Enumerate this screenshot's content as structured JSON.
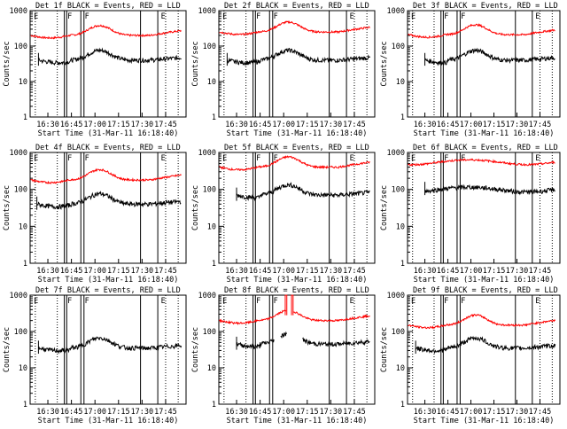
{
  "colors": {
    "events": "#000000",
    "lld": "#ff0000",
    "axis": "#000000"
  },
  "shared": {
    "xlabel": "Start Time (31-Mar-11 16:18:40)",
    "ylabel": "Counts/sec",
    "yscale": "log",
    "ylim": [
      1,
      1000
    ],
    "yticks": [
      "1",
      "10",
      "100",
      "1000"
    ],
    "xticks": [
      "16:30",
      "16:45",
      "17:00",
      "17:15",
      "17:30",
      "17:45"
    ],
    "xtick_minutes": [
      30,
      45,
      60,
      75,
      90,
      105
    ],
    "xlim_minutes": [
      18.7,
      118
    ],
    "marker_labels": [
      "E",
      "F",
      "F",
      "E"
    ],
    "solid_markers_minutes": [
      40.5,
      42,
      51,
      53,
      89,
      100
    ],
    "dotted_markers_minutes": [
      22,
      36,
      105,
      113
    ]
  },
  "chart_data": [
    {
      "type": "line",
      "title": "Det 1f BLACK = Events, RED = LLD",
      "events_base": 40,
      "lld_base": 200,
      "events_start": 24,
      "lld_start": 19
    },
    {
      "type": "line",
      "title": "Det 2f BLACK = Events, RED = LLD",
      "events_base": 40,
      "lld_base": 250,
      "events_start": 24,
      "lld_start": 19
    },
    {
      "type": "line",
      "title": "Det 3f BLACK = Events, RED = LLD",
      "events_base": 40,
      "lld_base": 210,
      "events_start": 30,
      "lld_start": 19
    },
    {
      "type": "line",
      "title": "Det 4f BLACK = Events, RED = LLD",
      "events_base": 40,
      "lld_base": 180,
      "events_start": 23,
      "lld_start": 19
    },
    {
      "type": "line",
      "title": "Det 5f BLACK = Events, RED = LLD",
      "events_base": 70,
      "lld_base": 400,
      "events_start": 30,
      "lld_start": 19
    },
    {
      "type": "line",
      "title": "Det 6f BLACK = Events, RED = LLD",
      "events_base": 100,
      "lld_base": 550,
      "events_start": 30,
      "lld_start": 19,
      "flat": true
    },
    {
      "type": "line",
      "title": "Det 7f BLACK = Events, RED = LLD",
      "events_base": 35,
      "lld_base": null,
      "events_start": 24,
      "lld_start": 19
    },
    {
      "type": "line",
      "title": "Det 8f BLACK = Events, RED = LLD",
      "events_base": 45,
      "lld_base": 200,
      "events_start": 30,
      "lld_start": 19,
      "gap": true
    },
    {
      "type": "line",
      "title": "Det 9f BLACK = Events, RED = LLD",
      "events_base": 35,
      "lld_base": 150,
      "events_start": 24,
      "lld_start": 19
    }
  ]
}
